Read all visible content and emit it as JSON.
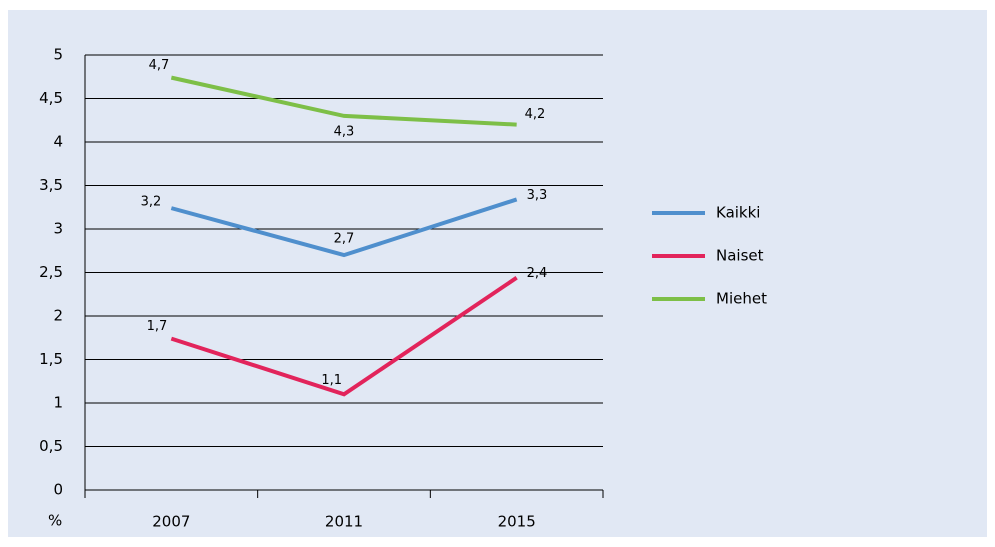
{
  "chart_data": {
    "type": "line",
    "ylabel": "%",
    "categories": [
      "2007",
      "2011",
      "2015"
    ],
    "series": [
      {
        "name": "Kaikki",
        "color": "#4f8fcd",
        "values": [
          3.24,
          2.7,
          3.34
        ],
        "value_labels": [
          "3,2",
          "2,7",
          "3,3"
        ]
      },
      {
        "name": "Naiset",
        "color": "#e2245b",
        "values": [
          1.74,
          1.1,
          2.44
        ],
        "value_labels": [
          "1,7",
          "1,1",
          "2,4"
        ]
      },
      {
        "name": "Miehet",
        "color": "#7dbf47",
        "values": [
          4.74,
          4.3,
          4.2
        ],
        "value_labels": [
          "4,7",
          "4,3",
          "4,2"
        ]
      }
    ],
    "ylim": [
      0,
      5
    ],
    "yticks": [
      0,
      {
        "value": 0.5,
        "label": "0,5"
      },
      1,
      {
        "value": 1.5,
        "label": "1,5"
      },
      2,
      {
        "value": 2.5,
        "label": "2,5"
      },
      3,
      {
        "value": 3.5,
        "label": "3,5"
      },
      4,
      {
        "value": 4.5,
        "label": "4,5"
      },
      5
    ],
    "grid": true,
    "legend": "right"
  }
}
